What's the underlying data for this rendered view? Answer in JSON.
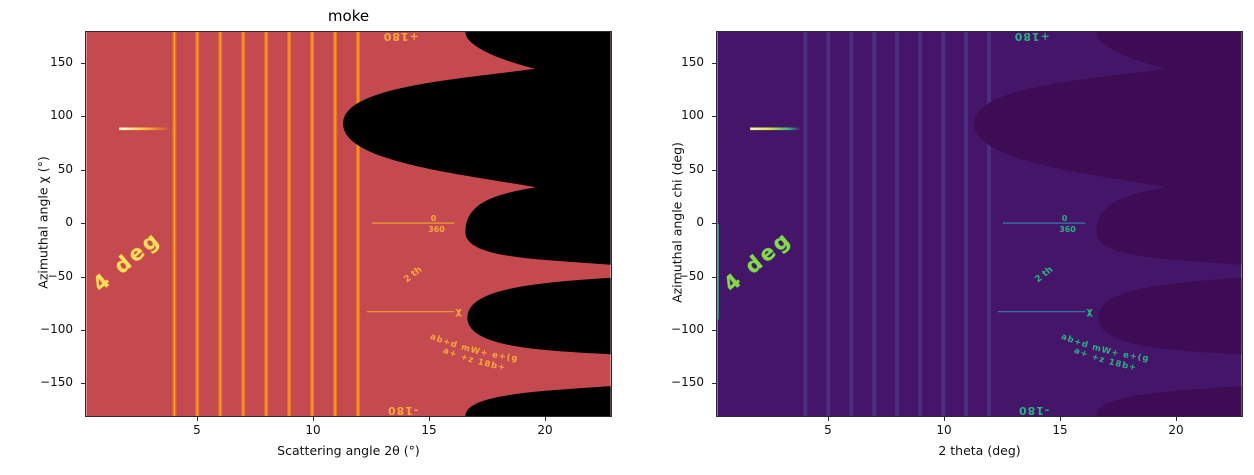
{
  "left_plot": {
    "title": "moke",
    "xlabel": "Scattering angle 2θ (°)",
    "ylabel": "Azimuthal angle χ (°)",
    "x_ticks": [
      "5",
      "10",
      "15",
      "20"
    ],
    "y_ticks": [
      "150",
      "100",
      "50",
      "0",
      "−50",
      "−100",
      "−150"
    ],
    "annotations": {
      "top_flipped": "+180",
      "bottom_flipped": "-180",
      "zero": "0",
      "three_sixty": "360",
      "ring_spacing": "4 deg",
      "two_theta_note": "2 th",
      "chi_symbol": "χ",
      "illegible_curved_1": "ab+d mW+ e+(g",
      "illegible_curved_2": "a+ +z 18b+"
    },
    "colors": {
      "background": "#c54a50",
      "ring": "#e8731f",
      "ring_core": "#fba23c",
      "masked": "#000000",
      "annotation": "#f5a93d",
      "annotation_bright": "#ffdf63",
      "annotation_stroke": "#e8751f",
      "hline": "#e8962f",
      "grad0": "#ffffe8",
      "grad1": "#ffd54f",
      "grad2": "#f08228",
      "grad3": "#c54a50"
    }
  },
  "right_plot": {
    "title": "",
    "xlabel": "2 theta (deg)",
    "ylabel": "Azimuthal angle chi (deg)",
    "x_ticks": [
      "5",
      "10",
      "15",
      "20"
    ],
    "y_ticks": [
      "150",
      "100",
      "50",
      "0",
      "−50",
      "−100",
      "−150"
    ],
    "annotations": {
      "top_flipped": "+180",
      "bottom_flipped": "-180",
      "zero": "0",
      "three_sixty": "360",
      "ring_spacing": "4 deg",
      "two_theta_note": "2 th",
      "chi_symbol": "χ",
      "illegible_curved_1": "ab+d mW+ e+(g",
      "illegible_curved_2": "a+ +z 18b+"
    },
    "colors": {
      "background": "#451569",
      "ring": "#4c2d80",
      "masked": "#3d0c55",
      "annotation": "#2bb184",
      "annotation_bright": "#8ed645",
      "annotation_stroke": "#1f8a70",
      "hline": "#3b6fa0",
      "edge_line": "#2e9b8f",
      "grad0": "#f6fbb0",
      "grad1": "#c8e24a",
      "grad2": "#35b779",
      "grad3": "#451569"
    }
  },
  "chart_data": {
    "type": "heatmap",
    "description": "Two cake/azimuthal-regrouped views of the same synthetic 'moke' diffraction image: scattering angle 2theta on x vs azimuthal angle chi on y.",
    "x_range_deg": [
      0.17,
      23.0
    ],
    "y_range_deg": [
      -180,
      180
    ],
    "x_ticks": [
      5,
      10,
      15,
      20
    ],
    "y_ticks": [
      150,
      100,
      50,
      0,
      -50,
      -100,
      -150
    ],
    "ring_positions_2theta_deg": [
      4,
      5,
      6,
      7,
      8,
      9,
      10,
      11,
      12
    ],
    "bright_line": {
      "chi_deg": 90,
      "two_theta_from": 1.6,
      "two_theta_to": 3.8
    },
    "masked_outside_detector": "scalloped region at large 2theta; lobes reach in to ~11.3° at chi≈+93°, ~16.6° at chi≈0°, ±180° and −88°; red/purple cusps reach ~19.7° at chi≈+147° and +34°, and past 23° at chi≈−45° and −135°",
    "panels": [
      {
        "title": "moke",
        "xlabel": "Scattering angle 2θ (°)",
        "ylabel": "Azimuthal angle χ (°)",
        "colormap": "black–red–orange–yellow (hot-like)"
      },
      {
        "title": "",
        "xlabel": "2 theta (deg)",
        "ylabel": "Azimuthal angle chi (deg)",
        "colormap": "viridis"
      }
    ]
  }
}
